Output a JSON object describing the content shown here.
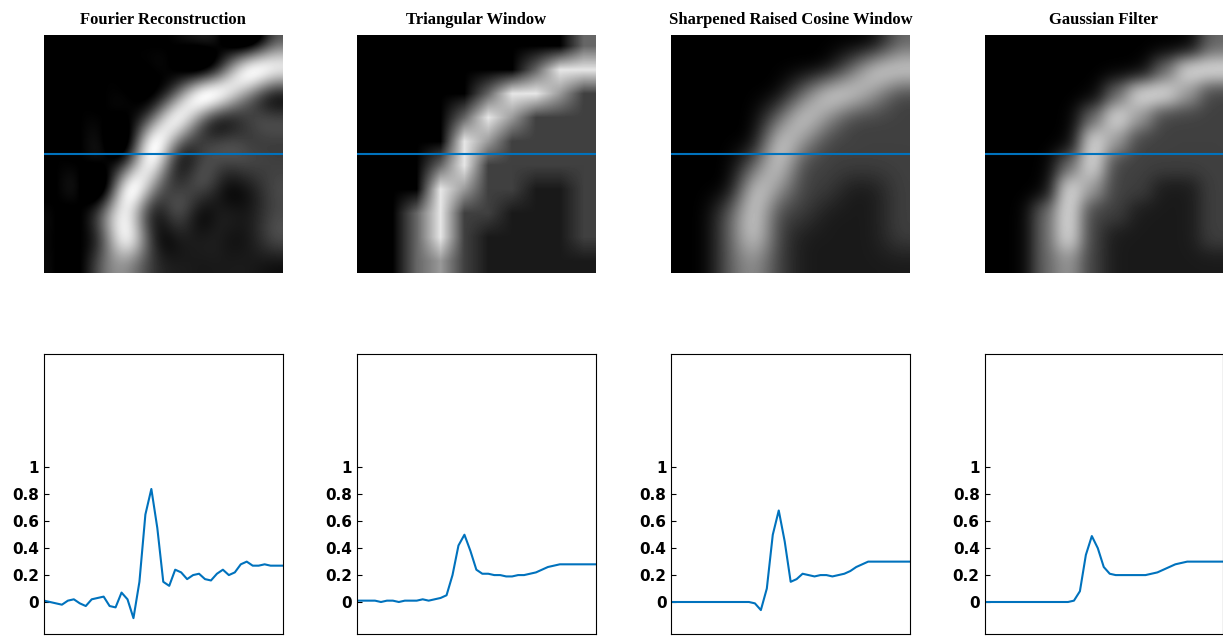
{
  "chart_data": [
    {
      "type": "image",
      "title": "Fourier Reconstruction",
      "clim": [
        0,
        1
      ],
      "line_y": 4.5,
      "line_color": "#0072BD",
      "cells": [
        [
          0,
          0,
          0,
          0,
          0,
          0,
          0,
          0,
          0,
          0.4
        ],
        [
          0,
          0,
          0,
          0,
          0,
          0,
          0,
          0.4,
          0.9,
          0.9
        ],
        [
          0,
          0,
          0,
          0,
          0,
          0.4,
          0.9,
          0.9,
          0.6,
          0.25
        ],
        [
          0,
          0,
          0,
          0,
          0.4,
          0.9,
          0.6,
          0.25,
          0.25,
          0.25
        ],
        [
          0,
          0,
          0,
          0,
          0.9,
          0.6,
          0.25,
          0.25,
          0.25,
          0.25
        ],
        [
          0,
          0,
          0,
          0.4,
          0.9,
          0.25,
          0.25,
          0.25,
          0.25,
          0.25
        ],
        [
          0,
          0,
          0,
          0.9,
          0.6,
          0.25,
          0.25,
          0.1,
          0.1,
          0.25
        ],
        [
          0,
          0,
          0.4,
          0.9,
          0.25,
          0.25,
          0.1,
          0.1,
          0.1,
          0.25
        ],
        [
          0,
          0,
          0.4,
          0.9,
          0.25,
          0.1,
          0.1,
          0.1,
          0.1,
          0.25
        ],
        [
          0,
          0,
          0.4,
          0.6,
          0.25,
          0.1,
          0.1,
          0.1,
          0.1,
          0.1
        ]
      ]
    },
    {
      "type": "image",
      "title": "Triangular Window",
      "clim": [
        0,
        1
      ],
      "line_y": 4.5,
      "line_color": "#0072BD",
      "cells": [
        [
          0,
          0,
          0,
          0,
          0,
          0,
          0,
          0,
          0,
          0.4
        ],
        [
          0,
          0,
          0,
          0,
          0,
          0,
          0,
          0.4,
          0.9,
          0.9
        ],
        [
          0,
          0,
          0,
          0,
          0,
          0.4,
          0.9,
          0.9,
          0.6,
          0.25
        ],
        [
          0,
          0,
          0,
          0,
          0.4,
          0.9,
          0.6,
          0.25,
          0.25,
          0.25
        ],
        [
          0,
          0,
          0,
          0,
          0.9,
          0.6,
          0.25,
          0.25,
          0.25,
          0.25
        ],
        [
          0,
          0,
          0,
          0.4,
          0.9,
          0.25,
          0.25,
          0.25,
          0.25,
          0.25
        ],
        [
          0,
          0,
          0,
          0.9,
          0.6,
          0.25,
          0.25,
          0.1,
          0.1,
          0.25
        ],
        [
          0,
          0,
          0.4,
          0.9,
          0.25,
          0.25,
          0.1,
          0.1,
          0.1,
          0.25
        ],
        [
          0,
          0,
          0.4,
          0.9,
          0.25,
          0.1,
          0.1,
          0.1,
          0.1,
          0.25
        ],
        [
          0,
          0,
          0.4,
          0.6,
          0.25,
          0.1,
          0.1,
          0.1,
          0.1,
          0.1
        ]
      ]
    },
    {
      "type": "image",
      "title": "Sharpened Raised Cosine Window",
      "clim": [
        0,
        1
      ],
      "line_y": 4.5,
      "line_color": "#0072BD",
      "cells": [
        [
          0,
          0,
          0,
          0,
          0,
          0,
          0,
          0,
          0,
          0.4
        ],
        [
          0,
          0,
          0,
          0,
          0,
          0,
          0,
          0.4,
          0.9,
          0.9
        ],
        [
          0,
          0,
          0,
          0,
          0,
          0.4,
          0.9,
          0.9,
          0.6,
          0.25
        ],
        [
          0,
          0,
          0,
          0,
          0.4,
          0.9,
          0.6,
          0.25,
          0.25,
          0.25
        ],
        [
          0,
          0,
          0,
          0,
          0.9,
          0.6,
          0.25,
          0.25,
          0.25,
          0.25
        ],
        [
          0,
          0,
          0,
          0.4,
          0.9,
          0.25,
          0.25,
          0.25,
          0.25,
          0.25
        ],
        [
          0,
          0,
          0,
          0.9,
          0.6,
          0.25,
          0.25,
          0.1,
          0.1,
          0.25
        ],
        [
          0,
          0,
          0.4,
          0.9,
          0.25,
          0.25,
          0.1,
          0.1,
          0.1,
          0.25
        ],
        [
          0,
          0,
          0.4,
          0.9,
          0.25,
          0.1,
          0.1,
          0.1,
          0.1,
          0.25
        ],
        [
          0,
          0,
          0.4,
          0.6,
          0.25,
          0.1,
          0.1,
          0.1,
          0.1,
          0.1
        ]
      ]
    },
    {
      "type": "image",
      "title": "Gaussian Filter",
      "clim": [
        0,
        1
      ],
      "line_y": 4.5,
      "line_color": "#0072BD",
      "cells": [
        [
          0,
          0,
          0,
          0,
          0,
          0,
          0,
          0,
          0,
          0.4
        ],
        [
          0,
          0,
          0,
          0,
          0,
          0,
          0,
          0.4,
          0.9,
          0.9
        ],
        [
          0,
          0,
          0,
          0,
          0,
          0.4,
          0.9,
          0.9,
          0.6,
          0.25
        ],
        [
          0,
          0,
          0,
          0,
          0.4,
          0.9,
          0.6,
          0.25,
          0.25,
          0.25
        ],
        [
          0,
          0,
          0,
          0,
          0.9,
          0.6,
          0.25,
          0.25,
          0.25,
          0.25
        ],
        [
          0,
          0,
          0,
          0.4,
          0.9,
          0.25,
          0.25,
          0.25,
          0.25,
          0.25
        ],
        [
          0,
          0,
          0,
          0.9,
          0.6,
          0.25,
          0.25,
          0.1,
          0.1,
          0.25
        ],
        [
          0,
          0,
          0.4,
          0.9,
          0.25,
          0.25,
          0.1,
          0.1,
          0.1,
          0.25
        ],
        [
          0,
          0,
          0.4,
          0.9,
          0.25,
          0.1,
          0.1,
          0.1,
          0.1,
          0.25
        ],
        [
          0,
          0,
          0.4,
          0.6,
          0.25,
          0.1,
          0.1,
          0.1,
          0.1,
          0.1
        ]
      ]
    },
    {
      "type": "line",
      "xlim": [
        0,
        100
      ],
      "xticks": [],
      "ylim": [
        -0.24,
        1.84
      ],
      "yticks": [
        0,
        0.2,
        0.4,
        0.6,
        0.8,
        1
      ],
      "tick_labels": "y",
      "x": [
        0,
        2.5,
        5,
        7.5,
        10,
        12.5,
        15,
        17.5,
        20,
        22.5,
        25,
        27.5,
        30,
        32.5,
        35,
        37.5,
        40,
        42.5,
        45,
        47.5,
        50,
        52.5,
        55,
        57.5,
        60,
        62.5,
        65,
        67.5,
        70,
        72.5,
        75,
        77.5,
        80,
        82.5,
        85,
        87.5,
        90,
        92.5,
        95,
        97.5,
        100
      ],
      "series": [
        {
          "color": "#0072BD",
          "values": [
            0.01,
            0.0,
            -0.01,
            -0.02,
            0.01,
            0.02,
            -0.01,
            -0.03,
            0.02,
            0.03,
            0.04,
            -0.03,
            -0.04,
            0.07,
            0.02,
            -0.12,
            0.15,
            0.65,
            0.84,
            0.55,
            0.15,
            0.12,
            0.24,
            0.22,
            0.17,
            0.2,
            0.21,
            0.17,
            0.16,
            0.21,
            0.24,
            0.2,
            0.22,
            0.28,
            0.3,
            0.27,
            0.27,
            0.28,
            0.27,
            0.27,
            0.27
          ]
        }
      ]
    },
    {
      "type": "line",
      "xlim": [
        0,
        100
      ],
      "xticks": [],
      "ylim": [
        -0.24,
        1.84
      ],
      "yticks": [
        0,
        0.2,
        0.4,
        0.6,
        0.8,
        1
      ],
      "tick_labels": "y",
      "x": [
        0,
        2.5,
        5,
        7.5,
        10,
        12.5,
        15,
        17.5,
        20,
        22.5,
        25,
        27.5,
        30,
        32.5,
        35,
        37.5,
        40,
        42.5,
        45,
        47.5,
        50,
        52.5,
        55,
        57.5,
        60,
        62.5,
        65,
        67.5,
        70,
        72.5,
        75,
        77.5,
        80,
        82.5,
        85,
        87.5,
        90,
        92.5,
        95,
        97.5,
        100
      ],
      "series": [
        {
          "color": "#0072BD",
          "values": [
            0.01,
            0.01,
            0.01,
            0.01,
            0.0,
            0.01,
            0.01,
            0.0,
            0.01,
            0.01,
            0.01,
            0.02,
            0.01,
            0.02,
            0.03,
            0.05,
            0.2,
            0.42,
            0.5,
            0.38,
            0.24,
            0.21,
            0.21,
            0.2,
            0.2,
            0.19,
            0.19,
            0.2,
            0.2,
            0.21,
            0.22,
            0.24,
            0.26,
            0.27,
            0.28,
            0.28,
            0.28,
            0.28,
            0.28,
            0.28,
            0.28
          ]
        }
      ]
    },
    {
      "type": "line",
      "xlim": [
        0,
        100
      ],
      "xticks": [],
      "ylim": [
        -0.24,
        1.84
      ],
      "yticks": [
        0,
        0.2,
        0.4,
        0.6,
        0.8,
        1
      ],
      "tick_labels": "y",
      "x": [
        0,
        2.5,
        5,
        7.5,
        10,
        12.5,
        15,
        17.5,
        20,
        22.5,
        25,
        27.5,
        30,
        32.5,
        35,
        37.5,
        40,
        42.5,
        45,
        47.5,
        50,
        52.5,
        55,
        57.5,
        60,
        62.5,
        65,
        67.5,
        70,
        72.5,
        75,
        77.5,
        80,
        82.5,
        85,
        87.5,
        90,
        92.5,
        95,
        97.5,
        100
      ],
      "series": [
        {
          "color": "#0072BD",
          "values": [
            0,
            0,
            0,
            0,
            0,
            0,
            0,
            0,
            0,
            0,
            0,
            0,
            0,
            0.0,
            -0.01,
            -0.06,
            0.1,
            0.5,
            0.68,
            0.45,
            0.15,
            0.17,
            0.21,
            0.2,
            0.19,
            0.2,
            0.2,
            0.19,
            0.2,
            0.21,
            0.23,
            0.26,
            0.28,
            0.3,
            0.3,
            0.3,
            0.3,
            0.3,
            0.3,
            0.3,
            0.3
          ]
        }
      ]
    },
    {
      "type": "line",
      "xlim": [
        0,
        100
      ],
      "xticks": [],
      "ylim": [
        -0.24,
        1.84
      ],
      "yticks": [
        0,
        0.2,
        0.4,
        0.6,
        0.8,
        1
      ],
      "tick_labels": "y",
      "x": [
        0,
        2.5,
        5,
        7.5,
        10,
        12.5,
        15,
        17.5,
        20,
        22.5,
        25,
        27.5,
        30,
        32.5,
        35,
        37.5,
        40,
        42.5,
        45,
        47.5,
        50,
        52.5,
        55,
        57.5,
        60,
        62.5,
        65,
        67.5,
        70,
        72.5,
        75,
        77.5,
        80,
        82.5,
        85,
        87.5,
        90,
        92.5,
        95,
        97.5,
        100
      ],
      "series": [
        {
          "color": "#0072BD",
          "values": [
            0,
            0,
            0,
            0,
            0,
            0,
            0,
            0,
            0,
            0,
            0,
            0,
            0,
            0,
            0,
            0.01,
            0.08,
            0.35,
            0.49,
            0.4,
            0.26,
            0.21,
            0.2,
            0.2,
            0.2,
            0.2,
            0.2,
            0.2,
            0.21,
            0.22,
            0.24,
            0.26,
            0.28,
            0.29,
            0.3,
            0.3,
            0.3,
            0.3,
            0.3,
            0.3,
            0.3
          ]
        }
      ]
    }
  ]
}
